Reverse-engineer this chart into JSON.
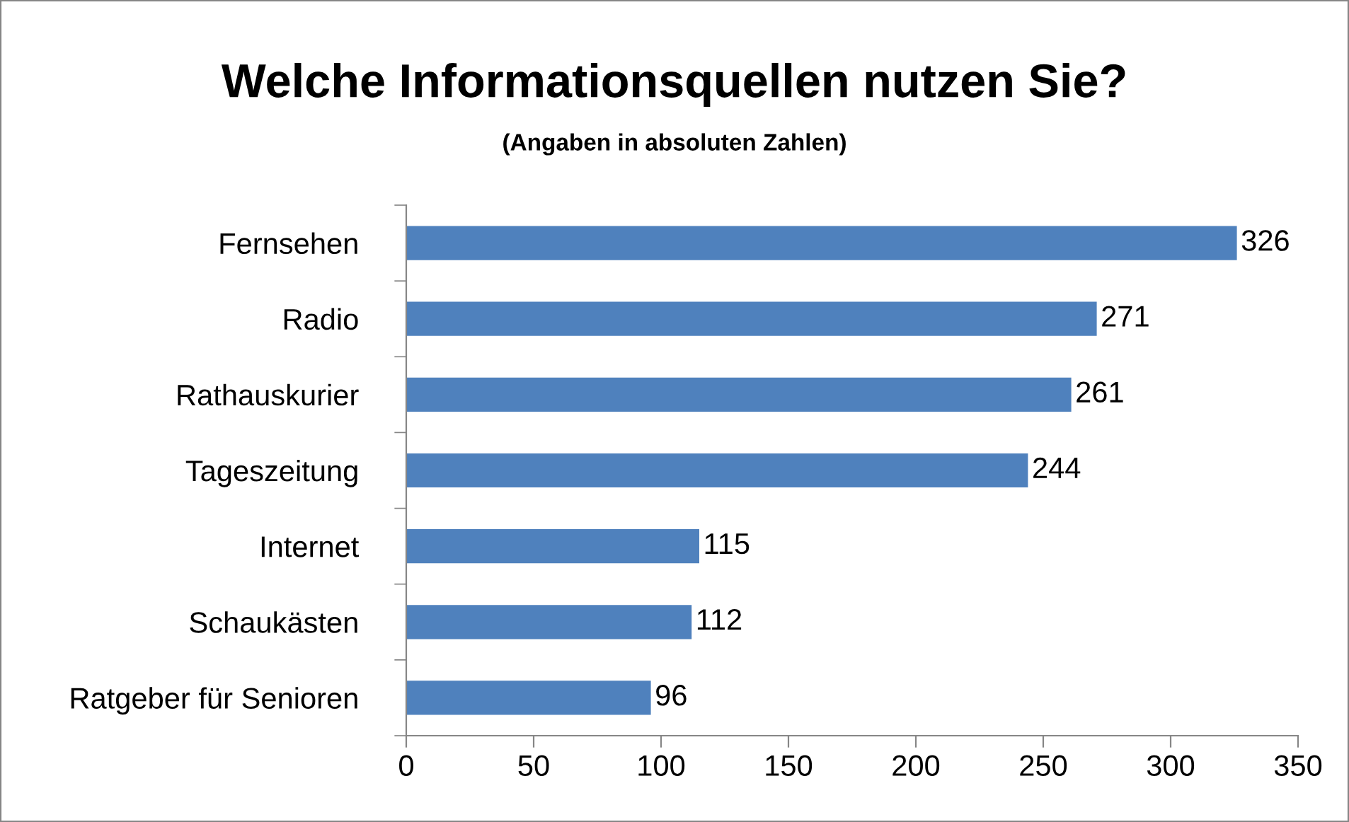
{
  "chart_data": {
    "type": "bar",
    "orientation": "horizontal",
    "title": "Welche Informationsquellen nutzen Sie?",
    "subtitle": "(Angaben in absoluten Zahlen)",
    "categories": [
      "Fernsehen",
      "Radio",
      "Rathauskurier",
      "Tageszeitung",
      "Internet",
      "Schaukästen",
      "Ratgeber für Senioren"
    ],
    "values": [
      326,
      271,
      261,
      244,
      115,
      112,
      96
    ],
    "color": "#4f81bd",
    "xlim": [
      0,
      350
    ],
    "xticks": [
      0,
      50,
      100,
      150,
      200,
      250,
      300,
      350
    ],
    "grid": false,
    "data_labels": true
  }
}
